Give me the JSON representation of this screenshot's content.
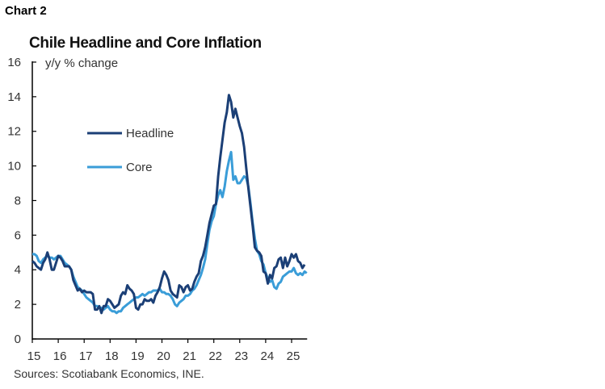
{
  "header": {
    "chart_label": "Chart 2",
    "source": "Sources: Scotiabank Economics, INE."
  },
  "chart_data": {
    "type": "line",
    "title": "Chile Headline and Core Inflation",
    "ylabel": "y/y % change",
    "xlabel": "",
    "ylim": [
      0,
      16
    ],
    "yticks": [
      0,
      2,
      4,
      6,
      8,
      10,
      12,
      14,
      16
    ],
    "xlim": [
      2015,
      2025.6
    ],
    "xticks": [
      "15",
      "16",
      "17",
      "18",
      "19",
      "20",
      "21",
      "22",
      "23",
      "24",
      "25"
    ],
    "grid": false,
    "legend": "left-inside",
    "frequency": "monthly, starting Jan 2015",
    "series": [
      {
        "name": "Headline",
        "color": "#1b3f76",
        "values": [
          4.5,
          4.4,
          4.2,
          4.1,
          4.0,
          4.4,
          4.6,
          5.0,
          4.6,
          4.0,
          4.0,
          4.4,
          4.8,
          4.7,
          4.5,
          4.2,
          4.2,
          4.2,
          4.0,
          3.4,
          3.1,
          2.8,
          2.9,
          2.7,
          2.8,
          2.7,
          2.7,
          2.7,
          2.6,
          1.7,
          1.7,
          1.9,
          1.5,
          1.9,
          1.9,
          2.3,
          2.2,
          2.0,
          1.8,
          1.9,
          2.0,
          2.5,
          2.7,
          2.6,
          3.1,
          2.9,
          2.8,
          2.6,
          1.8,
          1.7,
          2.0,
          2.0,
          2.3,
          2.2,
          2.2,
          2.3,
          2.1,
          2.5,
          2.7,
          3.0,
          3.5,
          3.9,
          3.7,
          3.4,
          2.8,
          2.6,
          2.5,
          2.4,
          3.1,
          3.0,
          2.7,
          3.0,
          3.1,
          2.8,
          2.9,
          3.3,
          3.6,
          3.8,
          4.5,
          4.8,
          5.3,
          6.0,
          6.7,
          7.2,
          7.7,
          7.8,
          9.4,
          10.5,
          11.5,
          12.5,
          13.1,
          14.1,
          13.7,
          12.8,
          13.3,
          12.8,
          12.3,
          11.9,
          11.1,
          9.9,
          8.7,
          7.6,
          6.5,
          5.3,
          5.1,
          5.0,
          4.8,
          3.9,
          3.8,
          3.2,
          3.7,
          3.5,
          4.1,
          4.2,
          4.6,
          4.7,
          4.1,
          4.7,
          4.2,
          4.5,
          4.9,
          4.7,
          4.9,
          4.5,
          4.4,
          4.1,
          4.3
        ]
      },
      {
        "name": "Core",
        "color": "#3a9dd8",
        "values": [
          4.9,
          4.9,
          4.8,
          4.5,
          4.4,
          4.6,
          4.7,
          4.8,
          4.7,
          4.7,
          4.6,
          4.7,
          4.8,
          4.8,
          4.6,
          4.4,
          4.3,
          4.2,
          4.0,
          3.6,
          3.3,
          3.0,
          2.9,
          2.8,
          2.6,
          2.4,
          2.3,
          2.2,
          2.1,
          1.9,
          1.9,
          1.8,
          1.8,
          1.7,
          1.8,
          1.9,
          1.7,
          1.6,
          1.6,
          1.5,
          1.6,
          1.6,
          1.8,
          1.9,
          2.0,
          2.1,
          2.2,
          2.3,
          2.4,
          2.4,
          2.5,
          2.6,
          2.5,
          2.6,
          2.7,
          2.7,
          2.8,
          2.8,
          2.8,
          2.9,
          2.7,
          2.7,
          2.6,
          2.6,
          2.5,
          2.3,
          2.0,
          1.9,
          2.1,
          2.2,
          2.3,
          2.5,
          2.5,
          2.6,
          2.8,
          2.9,
          3.1,
          3.4,
          3.7,
          4.1,
          4.6,
          5.5,
          6.3,
          6.8,
          7.1,
          7.8,
          8.3,
          8.6,
          8.2,
          8.8,
          9.7,
          10.3,
          10.8,
          9.2,
          9.4,
          9.0,
          9.0,
          9.2,
          9.4,
          9.3,
          8.8,
          7.8,
          6.7,
          5.8,
          5.1,
          4.9,
          4.5,
          4.3,
          3.8,
          3.5,
          3.3,
          3.4,
          3.0,
          2.9,
          3.2,
          3.3,
          3.6,
          3.7,
          3.8,
          3.9,
          3.9,
          4.1,
          3.8,
          3.7,
          3.8,
          3.7,
          3.9,
          3.8
        ]
      }
    ]
  }
}
